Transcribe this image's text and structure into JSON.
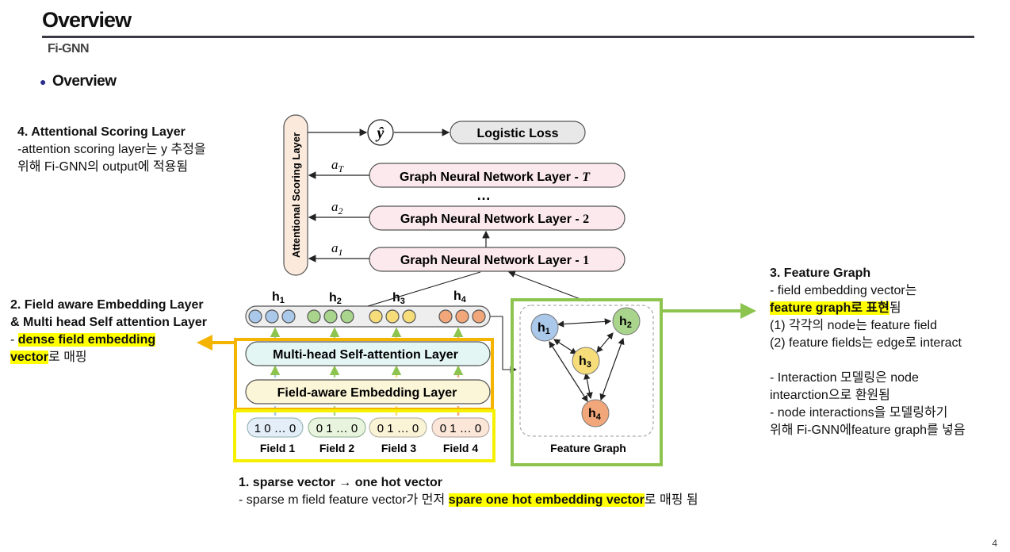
{
  "header": {
    "title": "Overview",
    "subtitle": "Fi-GNN",
    "bullet": "Overview"
  },
  "page_number": "4",
  "notes": {
    "n4": {
      "title": "4. Attentional Scoring Layer",
      "line1": "-attention scoring layer는 y 추정을",
      "line2": "위해 Fi-GNN의 output에 적용됨"
    },
    "n2": {
      "title1": "2. Field aware Embedding Layer",
      "title2": "& Multi head Self attention Layer",
      "dash": "- ",
      "hl1": "dense field embedding",
      "hl2": "vector",
      "tail": "로 매핑"
    },
    "n3": {
      "title": "3. Feature Graph",
      "l1": "- field embedding vector는",
      "hl": "feature graph로 표현",
      "hl_tail": "됨",
      "l3": "(1) 각각의 node는 feature field",
      "l4": "(2) feature fields는 edge로 interact",
      "l5": "- Interaction 모델링은 node",
      "l6": "intearction으로 환원됨",
      "l7": "- node interactions을 모델링하기",
      "l8": "위해 Fi-GNN에feature graph를 넣음"
    },
    "n1": {
      "title": "1. sparse vector → one hot vector",
      "pre": "- sparse m field feature vector가 먼저 ",
      "hl": "spare one hot embedding vector",
      "post": "로 매핑 됨"
    }
  },
  "diagram": {
    "scoring_layer": "Attentional Scoring Layer",
    "y_hat": "ŷ",
    "loss": "Logistic Loss",
    "gnn_layers": [
      {
        "label": "Graph Neural Network Layer - ",
        "index": "T",
        "weight": "a",
        "sub": "T"
      },
      {
        "label": "Graph Neural Network Layer - ",
        "index": "2",
        "weight": "a",
        "sub": "2"
      },
      {
        "label": "Graph Neural Network Layer - ",
        "index": "1",
        "weight": "a",
        "sub": "1"
      }
    ],
    "ellipsis": "…",
    "h_labels": [
      "h",
      "h",
      "h",
      "h"
    ],
    "h_subs": [
      "1",
      "2",
      "3",
      "4"
    ],
    "msa_layer": "Multi-head Self-attention Layer",
    "fae_layer": "Field-aware Embedding Layer",
    "fields": [
      {
        "vector": "1 0 … 0",
        "name": "Field 1"
      },
      {
        "vector": "0 1 … 0",
        "name": "Field 2"
      },
      {
        "vector": "0 1 … 0",
        "name": "Field 3"
      },
      {
        "vector": "0 1 … 0",
        "name": "Field 4"
      }
    ],
    "feature_graph": "Feature Graph",
    "nodes": [
      {
        "label": "h",
        "sub": "1",
        "color": "#a9c8ea"
      },
      {
        "label": "h",
        "sub": "2",
        "color": "#a8d58b"
      },
      {
        "label": "h",
        "sub": "3",
        "color": "#f6dd7a"
      },
      {
        "label": "h",
        "sub": "4",
        "color": "#f2a77a"
      }
    ],
    "colors": {
      "blue": "#a9c8ea",
      "green": "#a8d58b",
      "yellow": "#f6dd7a",
      "orange": "#f2a77a",
      "box_orange": "#f5b400",
      "box_yellow": "#f5f000",
      "box_green": "#8dc44f"
    }
  }
}
